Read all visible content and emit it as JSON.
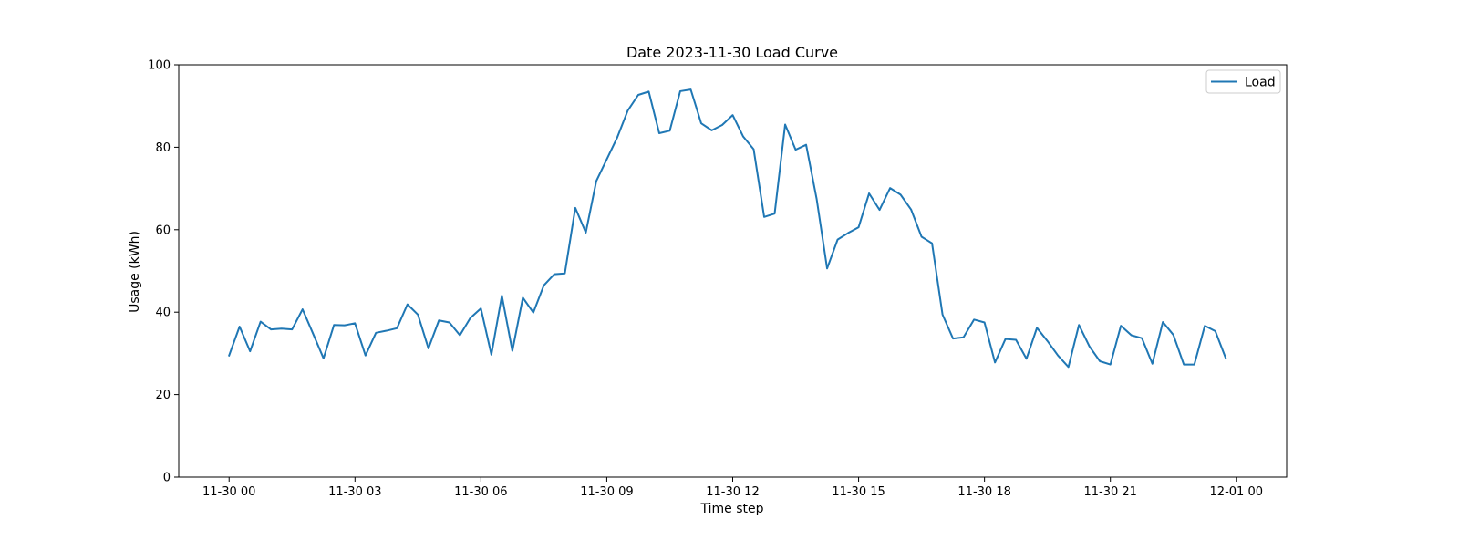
{
  "chart_data": {
    "type": "line",
    "title": "Date 2023-11-30 Load Curve",
    "xlabel": "Time step",
    "ylabel": "Usage (kWh)",
    "x_start": "2023-11-30 00:00",
    "x_step_minutes": 15,
    "xlim": [
      "2023-11-29 22:48",
      "2023-12-01 01:12"
    ],
    "ylim": [
      0,
      100
    ],
    "yticks": [
      0,
      20,
      40,
      60,
      80,
      100
    ],
    "ytick_labels": [
      "0",
      "20",
      "40",
      "60",
      "80",
      "100"
    ],
    "xticks": [
      "2023-11-30 00:00",
      "2023-11-30 03:00",
      "2023-11-30 06:00",
      "2023-11-30 09:00",
      "2023-11-30 12:00",
      "2023-11-30 15:00",
      "2023-11-30 18:00",
      "2023-11-30 21:00",
      "2023-12-01 00:00"
    ],
    "xtick_labels": [
      "11-30 00",
      "11-30 03",
      "11-30 06",
      "11-30 09",
      "11-30 12",
      "11-30 15",
      "11-30 18",
      "11-30 21",
      "12-01 00"
    ],
    "legend_position": "top-right",
    "grid": false,
    "series": [
      {
        "name": "Load",
        "color": "#1f77b4",
        "values": [
          29.5,
          36.5,
          30.5,
          37.7,
          35.8,
          36.0,
          35.8,
          40.7,
          34.8,
          28.8,
          36.9,
          36.8,
          37.3,
          29.5,
          35.0,
          35.5,
          36.1,
          41.9,
          39.4,
          31.2,
          38.0,
          37.5,
          34.4,
          38.6,
          40.9,
          29.7,
          44.0,
          30.6,
          43.5,
          39.9,
          46.5,
          49.2,
          49.4,
          65.3,
          59.3,
          71.8,
          77.1,
          82.4,
          88.9,
          92.7,
          93.5,
          83.4,
          84.0,
          93.6,
          94.0,
          85.8,
          84.1,
          85.4,
          87.8,
          82.6,
          79.5,
          63.1,
          63.9,
          85.5,
          79.4,
          80.6,
          67.5,
          50.6,
          57.6,
          59.2,
          60.6,
          68.8,
          64.8,
          70.1,
          68.5,
          64.9,
          58.3,
          56.7,
          39.4,
          33.6,
          33.9,
          38.2,
          37.5,
          27.8,
          33.5,
          33.3,
          28.7,
          36.2,
          33.0,
          29.5,
          26.7,
          36.9,
          31.7,
          28.1,
          27.3,
          36.7,
          34.4,
          33.7,
          27.5,
          37.6,
          34.5,
          27.3,
          27.3,
          36.7,
          35.4,
          28.8
        ]
      }
    ]
  }
}
